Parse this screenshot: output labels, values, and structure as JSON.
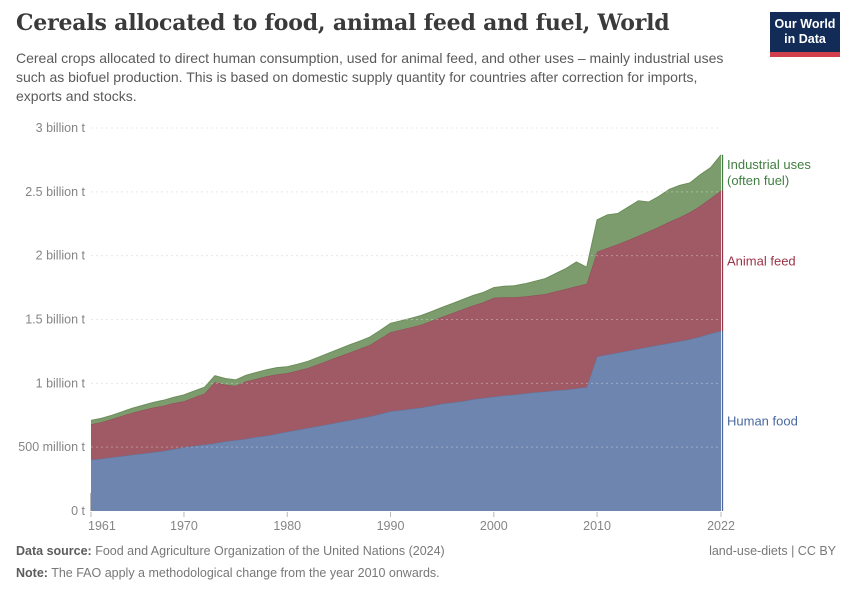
{
  "header": {
    "title": "Cereals allocated to food, animal feed and fuel, World",
    "subtitle": "Cereal crops allocated to direct human consumption, used for animal feed, and other uses – mainly industrial uses such as biofuel production. This is based on domestic supply quantity for countries after correction for imports, exports and stocks.",
    "logo": {
      "line1": "Our World",
      "line2": "in Data",
      "bg": "#132c57",
      "accent": "#d13f4d"
    }
  },
  "chart_data": {
    "type": "area",
    "stacked": true,
    "title": "Cereals allocated to food, animal feed and fuel, World",
    "unit": "t",
    "grid": "dashed",
    "legend_position": "right-edge-labels",
    "ylim": [
      0,
      3
    ],
    "ylim_unit": "billion tonnes",
    "x": [
      1961,
      1962,
      1963,
      1964,
      1965,
      1966,
      1967,
      1968,
      1969,
      1970,
      1971,
      1972,
      1973,
      1974,
      1975,
      1976,
      1977,
      1978,
      1979,
      1980,
      1981,
      1982,
      1983,
      1984,
      1985,
      1986,
      1987,
      1988,
      1989,
      1990,
      1991,
      1992,
      1993,
      1994,
      1995,
      1996,
      1997,
      1998,
      1999,
      2000,
      2001,
      2002,
      2003,
      2004,
      2005,
      2006,
      2007,
      2008,
      2009,
      2010,
      2011,
      2012,
      2013,
      2014,
      2015,
      2016,
      2017,
      2018,
      2019,
      2020,
      2021,
      2022
    ],
    "xticks": [
      1961,
      1970,
      1980,
      1990,
      2000,
      2010,
      2022
    ],
    "yticks": [
      {
        "v": 0,
        "label": "0 t"
      },
      {
        "v": 0.5,
        "label": "500 million t"
      },
      {
        "v": 1,
        "label": "1 billion t"
      },
      {
        "v": 1.5,
        "label": "1.5 billion t"
      },
      {
        "v": 2,
        "label": "2 billion t"
      },
      {
        "v": 2.5,
        "label": "2.5 billion t"
      },
      {
        "v": 3,
        "label": "3 billion t"
      }
    ],
    "series": [
      {
        "name": "Human food",
        "label_lines": [
          "Human food"
        ],
        "color": "#6e85af",
        "line_color": "#5d76a0",
        "label_color": "#4a69a0",
        "values_unit": "billion t",
        "values": [
          0.4,
          0.41,
          0.42,
          0.43,
          0.44,
          0.45,
          0.46,
          0.47,
          0.485,
          0.5,
          0.51,
          0.52,
          0.53,
          0.545,
          0.555,
          0.565,
          0.58,
          0.59,
          0.605,
          0.62,
          0.635,
          0.65,
          0.665,
          0.68,
          0.695,
          0.71,
          0.725,
          0.74,
          0.76,
          0.78,
          0.79,
          0.8,
          0.81,
          0.825,
          0.84,
          0.85,
          0.86,
          0.875,
          0.885,
          0.895,
          0.905,
          0.91,
          0.92,
          0.93,
          0.935,
          0.945,
          0.95,
          0.96,
          0.97,
          1.21,
          1.225,
          1.24,
          1.255,
          1.27,
          1.285,
          1.3,
          1.315,
          1.33,
          1.345,
          1.365,
          1.39,
          1.41
        ]
      },
      {
        "name": "Animal feed",
        "label_lines": [
          "Animal feed"
        ],
        "color": "#a05a65",
        "line_color": "#914b58",
        "label_color": "#9b3447",
        "values_unit": "billion t",
        "values": [
          0.28,
          0.285,
          0.3,
          0.315,
          0.33,
          0.34,
          0.35,
          0.355,
          0.36,
          0.36,
          0.38,
          0.4,
          0.48,
          0.445,
          0.425,
          0.45,
          0.455,
          0.465,
          0.465,
          0.46,
          0.465,
          0.47,
          0.485,
          0.5,
          0.515,
          0.53,
          0.545,
          0.56,
          0.59,
          0.62,
          0.63,
          0.64,
          0.65,
          0.665,
          0.68,
          0.7,
          0.72,
          0.735,
          0.75,
          0.775,
          0.77,
          0.765,
          0.76,
          0.76,
          0.765,
          0.775,
          0.79,
          0.8,
          0.81,
          0.82,
          0.835,
          0.85,
          0.865,
          0.885,
          0.905,
          0.925,
          0.95,
          0.97,
          0.995,
          1.025,
          1.06,
          1.1
        ]
      },
      {
        "name": "Industrial uses (often fuel)",
        "label_lines": [
          "Industrial uses",
          "(often fuel)"
        ],
        "color": "#7d9c6d",
        "line_color": "#6c8e5b",
        "label_color": "#417e41",
        "values_unit": "billion t",
        "values": [
          0.03,
          0.03,
          0.03,
          0.032,
          0.035,
          0.037,
          0.04,
          0.042,
          0.045,
          0.05,
          0.05,
          0.05,
          0.05,
          0.048,
          0.047,
          0.048,
          0.05,
          0.052,
          0.053,
          0.05,
          0.05,
          0.052,
          0.054,
          0.056,
          0.058,
          0.06,
          0.06,
          0.062,
          0.065,
          0.07,
          0.07,
          0.07,
          0.072,
          0.073,
          0.075,
          0.075,
          0.077,
          0.078,
          0.078,
          0.08,
          0.085,
          0.09,
          0.1,
          0.11,
          0.12,
          0.14,
          0.16,
          0.19,
          0.13,
          0.25,
          0.26,
          0.24,
          0.26,
          0.275,
          0.23,
          0.24,
          0.255,
          0.25,
          0.23,
          0.245,
          0.24,
          0.28
        ]
      }
    ]
  },
  "footer": {
    "source_label": "Data source:",
    "source_text": " Food and Agriculture Organization of the United Nations (2024)",
    "license": "land-use-diets | CC BY",
    "note_label": "Note:",
    "note_text": " The FAO apply a methodological change from the year 2010 onwards."
  }
}
